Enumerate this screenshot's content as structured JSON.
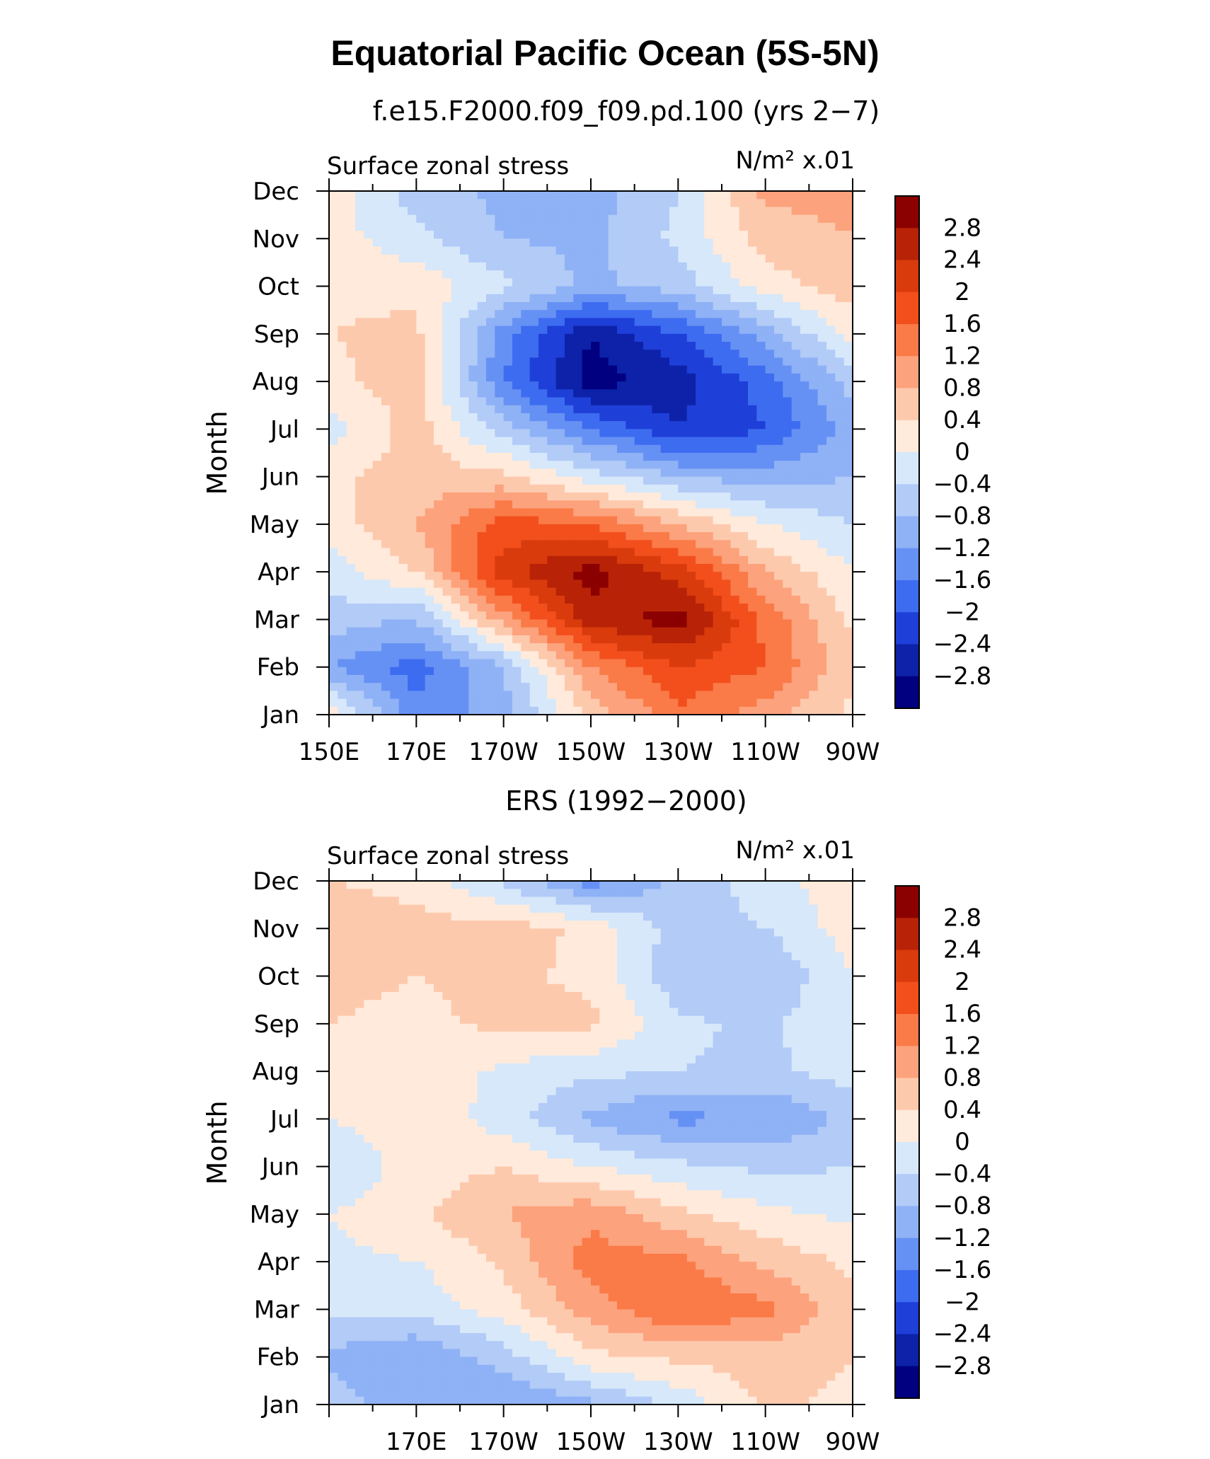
{
  "figure_title": "Equatorial Pacific Ocean (5S-5N)",
  "chart_data": [
    {
      "type": "heatmap",
      "title": "f.e15.F2000.f09_f09.pd.100 (yrs 2−7)",
      "left_label": "Surface zonal stress",
      "right_label": "N/m² x.01",
      "xlabel": "",
      "ylabel": "Month",
      "x_tick_labels": [
        "150E",
        "170E",
        "170W",
        "150W",
        "130W",
        "110W",
        "90W"
      ],
      "y_tick_labels": [
        "Jan",
        "Feb",
        "Mar",
        "Apr",
        "May",
        "Jun",
        "Jul",
        "Aug",
        "Sep",
        "Oct",
        "Nov",
        "Dec"
      ],
      "x_range_lon_east": [
        150,
        270
      ],
      "colorbar": {
        "labels": [
          "2.8",
          "2.4",
          "2",
          "1.6",
          "1.2",
          "0.8",
          "0.4",
          "0",
          "−0.4",
          "−0.8",
          "−1.2",
          "−1.6",
          "−2",
          "−2.4",
          "−2.8"
        ],
        "levels": [
          2.8,
          2.4,
          2.0,
          1.6,
          1.2,
          0.8,
          0.4,
          0,
          -0.4,
          -0.8,
          -1.2,
          -1.6,
          -2.0,
          -2.4,
          -2.8
        ],
        "colors": [
          "#8b0000",
          "#b82307",
          "#d93b0d",
          "#f24f1c",
          "#fa7a48",
          "#fca27c",
          "#fdc9ad",
          "#ffeadb",
          "#d6e8fa",
          "#b2cbf7",
          "#8fb1f6",
          "#6691f4",
          "#3d6cf0",
          "#1e3fd8",
          "#0d22a8",
          "#000080"
        ]
      },
      "lon": [
        150,
        170,
        190,
        210,
        230,
        250,
        270
      ],
      "months": [
        "Jan",
        "Feb",
        "Mar",
        "Apr",
        "May",
        "Jun",
        "Jul",
        "Aug",
        "Sep",
        "Oct",
        "Nov",
        "Dec"
      ],
      "values": [
        [
          0.3,
          -1.5,
          -1.0,
          0.5,
          1.5,
          1.0,
          0.3
        ],
        [
          -1.2,
          -1.8,
          -0.8,
          1.2,
          2.0,
          1.6,
          0.5
        ],
        [
          -0.6,
          -0.8,
          1.0,
          2.6,
          3.0,
          1.5,
          0.3
        ],
        [
          -0.2,
          0.4,
          2.2,
          3.0,
          2.2,
          0.8,
          0.0
        ],
        [
          0.2,
          0.8,
          1.8,
          1.6,
          0.8,
          0.0,
          -0.4
        ],
        [
          0.3,
          0.6,
          0.5,
          -0.2,
          -0.8,
          -1.0,
          -0.8
        ],
        [
          -0.2,
          0.6,
          -0.6,
          -1.6,
          -2.4,
          -2.0,
          -1.0
        ],
        [
          0.3,
          0.6,
          -1.6,
          -3.0,
          -2.6,
          -1.8,
          -0.6
        ],
        [
          0.4,
          0.5,
          -1.4,
          -2.8,
          -2.0,
          -1.0,
          0.2
        ],
        [
          0.3,
          0.3,
          -0.3,
          -0.9,
          -0.6,
          0.2,
          0.6
        ],
        [
          0.2,
          -0.3,
          -0.8,
          -0.9,
          -0.3,
          0.6,
          0.8
        ],
        [
          0.2,
          -0.6,
          -0.9,
          -1.0,
          -0.4,
          0.9,
          0.9
        ]
      ]
    },
    {
      "type": "heatmap",
      "title": "ERS (1992−2000)",
      "left_label": "Surface zonal stress",
      "right_label": "N/m² x.01",
      "xlabel": "",
      "ylabel": "Month",
      "x_tick_labels": [
        "",
        "170E",
        "170W",
        "150W",
        "130W",
        "110W",
        "90W"
      ],
      "y_tick_labels": [
        "Jan",
        "Feb",
        "Mar",
        "Apr",
        "May",
        "Jun",
        "Jul",
        "Aug",
        "Sep",
        "Oct",
        "Nov",
        "Dec"
      ],
      "x_range_lon_east": [
        150,
        270
      ],
      "colorbar": {
        "labels": [
          "2.8",
          "2.4",
          "2",
          "1.6",
          "1.2",
          "0.8",
          "0.4",
          "0",
          "−0.4",
          "−0.8",
          "−1.2",
          "−1.6",
          "−2",
          "−2.4",
          "−2.8"
        ],
        "levels": [
          2.8,
          2.4,
          2.0,
          1.6,
          1.2,
          0.8,
          0.4,
          0,
          -0.4,
          -0.8,
          -1.2,
          -1.6,
          -2.0,
          -2.4,
          -2.8
        ],
        "colors": [
          "#8b0000",
          "#b82307",
          "#d93b0d",
          "#f24f1c",
          "#fa7a48",
          "#fca27c",
          "#fdc9ad",
          "#ffeadb",
          "#d6e8fa",
          "#b2cbf7",
          "#8fb1f6",
          "#6691f4",
          "#3d6cf0",
          "#1e3fd8",
          "#0d22a8",
          "#000080"
        ]
      },
      "lon": [
        150,
        170,
        190,
        210,
        230,
        250,
        270
      ],
      "months": [
        "Jan",
        "Feb",
        "Mar",
        "Apr",
        "May",
        "Jun",
        "Jul",
        "Aug",
        "Sep",
        "Oct",
        "Nov",
        "Dec"
      ],
      "values": [
        [
          -0.6,
          -1.0,
          -1.2,
          -0.9,
          -0.3,
          0.5,
          0.3
        ],
        [
          -0.9,
          -1.2,
          -0.6,
          0.3,
          0.5,
          0.6,
          0.4
        ],
        [
          -0.3,
          -0.3,
          0.2,
          1.0,
          1.6,
          1.3,
          0.5
        ],
        [
          -0.1,
          0.0,
          0.5,
          1.4,
          1.3,
          0.7,
          0.3
        ],
        [
          0.0,
          0.3,
          0.8,
          1.1,
          0.5,
          0.1,
          -0.1
        ],
        [
          -0.4,
          0.2,
          0.4,
          0.0,
          -0.3,
          -0.5,
          -0.4
        ],
        [
          0.0,
          0.3,
          -0.2,
          -0.9,
          -1.3,
          -1.2,
          -0.7
        ],
        [
          0.3,
          0.3,
          -0.1,
          -0.3,
          -0.4,
          -0.5,
          -0.2
        ],
        [
          0.4,
          0.3,
          0.5,
          0.5,
          -0.3,
          -0.5,
          0.0
        ],
        [
          0.5,
          0.4,
          0.5,
          0.3,
          -0.7,
          -0.8,
          0.0
        ],
        [
          0.6,
          0.5,
          0.6,
          0.3,
          -0.6,
          -0.4,
          0.2
        ],
        [
          0.4,
          0.3,
          -0.5,
          -1.4,
          -0.7,
          -0.2,
          0.3
        ]
      ]
    }
  ]
}
